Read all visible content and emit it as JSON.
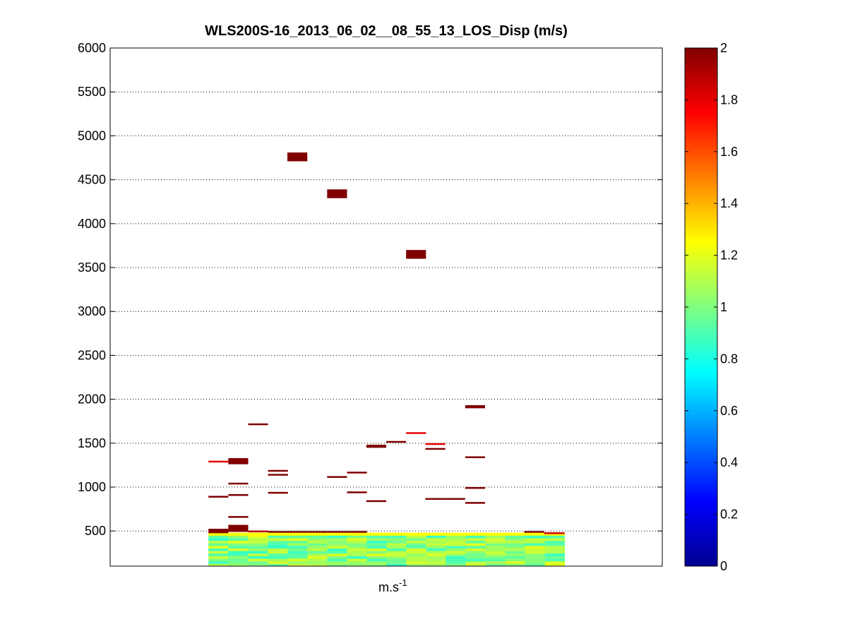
{
  "chart_data": {
    "type": "heatmap",
    "title": "WLS200S-16_2013_06_02__08_55_13_LOS_Disp (m/s)",
    "xlabel": {
      "base": "m.s",
      "superscript": "-1"
    },
    "ylabel": "",
    "ylim": [
      100,
      6000
    ],
    "yticks": [
      500,
      1000,
      1500,
      2000,
      2500,
      3000,
      3500,
      4000,
      4500,
      5000,
      5500,
      6000
    ],
    "y_grid": "dotted",
    "x_range": [
      0,
      1
    ],
    "colormap": "jet",
    "colorbar": {
      "range": [
        0,
        2
      ],
      "ticks": [
        0,
        0.2,
        0.4,
        0.6,
        0.8,
        1,
        1.2,
        1.4,
        1.6,
        1.8,
        2
      ],
      "tick_labels": [
        "0",
        "0.2",
        "0.4",
        "0.6",
        "0.8",
        "1",
        "1.2",
        "1.4",
        "1.6",
        "1.8",
        "2"
      ]
    },
    "dense_layer": {
      "x_start": 0.178,
      "x_end": 0.823,
      "columns": 18,
      "y_bottom": 100,
      "y_top": 480,
      "rows": 13,
      "value_range": [
        0.85,
        1.2
      ],
      "top_row_value": 1.25
    },
    "cells": [
      {
        "x": 0.178,
        "width": 0.036,
        "y": 500,
        "height": 50,
        "value": 2.0
      },
      {
        "x": 0.214,
        "width": 0.036,
        "y": 530,
        "height": 80,
        "value": 2.0
      },
      {
        "x": 0.25,
        "width": 0.036,
        "y": 495,
        "height": 20,
        "value": 1.9
      },
      {
        "x": 0.286,
        "width": 0.036,
        "y": 490,
        "height": 20,
        "value": 2.0
      },
      {
        "x": 0.321,
        "width": 0.036,
        "y": 490,
        "height": 20,
        "value": 2.0
      },
      {
        "x": 0.357,
        "width": 0.036,
        "y": 490,
        "height": 20,
        "value": 2.0
      },
      {
        "x": 0.393,
        "width": 0.036,
        "y": 490,
        "height": 20,
        "value": 2.0
      },
      {
        "x": 0.429,
        "width": 0.036,
        "y": 490,
        "height": 20,
        "value": 2.0
      },
      {
        "x": 0.75,
        "width": 0.036,
        "y": 490,
        "height": 20,
        "value": 2.0
      },
      {
        "x": 0.786,
        "width": 0.037,
        "y": 475,
        "height": 20,
        "value": 1.85
      },
      {
        "x": 0.178,
        "width": 0.036,
        "y": 890,
        "height": 20,
        "value": 2.0
      },
      {
        "x": 0.178,
        "width": 0.036,
        "y": 1290,
        "height": 20,
        "value": 1.8
      },
      {
        "x": 0.214,
        "width": 0.036,
        "y": 660,
        "height": 20,
        "value": 2.0
      },
      {
        "x": 0.214,
        "width": 0.036,
        "y": 910,
        "height": 20,
        "value": 2.0
      },
      {
        "x": 0.214,
        "width": 0.036,
        "y": 1040,
        "height": 20,
        "value": 2.0
      },
      {
        "x": 0.214,
        "width": 0.036,
        "y": 1295,
        "height": 70,
        "value": 2.0
      },
      {
        "x": 0.25,
        "width": 0.036,
        "y": 1715,
        "height": 20,
        "value": 2.0
      },
      {
        "x": 0.286,
        "width": 0.036,
        "y": 935,
        "height": 20,
        "value": 2.0
      },
      {
        "x": 0.286,
        "width": 0.036,
        "y": 1140,
        "height": 20,
        "value": 2.0
      },
      {
        "x": 0.286,
        "width": 0.036,
        "y": 1185,
        "height": 20,
        "value": 2.0
      },
      {
        "x": 0.321,
        "width": 0.036,
        "y": 4760,
        "height": 100,
        "value": 2.0
      },
      {
        "x": 0.393,
        "width": 0.036,
        "y": 4340,
        "height": 100,
        "value": 2.0
      },
      {
        "x": 0.393,
        "width": 0.036,
        "y": 1115,
        "height": 20,
        "value": 2.0
      },
      {
        "x": 0.429,
        "width": 0.036,
        "y": 940,
        "height": 20,
        "value": 2.0
      },
      {
        "x": 0.429,
        "width": 0.036,
        "y": 1165,
        "height": 20,
        "value": 2.0
      },
      {
        "x": 0.464,
        "width": 0.036,
        "y": 840,
        "height": 20,
        "value": 2.0
      },
      {
        "x": 0.464,
        "width": 0.036,
        "y": 1465,
        "height": 35,
        "value": 2.0
      },
      {
        "x": 0.5,
        "width": 0.036,
        "y": 1515,
        "height": 20,
        "value": 2.0
      },
      {
        "x": 0.536,
        "width": 0.036,
        "y": 3650,
        "height": 100,
        "value": 2.0
      },
      {
        "x": 0.536,
        "width": 0.036,
        "y": 1615,
        "height": 20,
        "value": 1.8
      },
      {
        "x": 0.571,
        "width": 0.036,
        "y": 1435,
        "height": 20,
        "value": 2.0
      },
      {
        "x": 0.571,
        "width": 0.036,
        "y": 1490,
        "height": 20,
        "value": 1.8
      },
      {
        "x": 0.571,
        "width": 0.036,
        "y": 865,
        "height": 20,
        "value": 2.0
      },
      {
        "x": 0.607,
        "width": 0.036,
        "y": 865,
        "height": 20,
        "value": 2.0
      },
      {
        "x": 0.643,
        "width": 0.036,
        "y": 820,
        "height": 20,
        "value": 2.0
      },
      {
        "x": 0.643,
        "width": 0.036,
        "y": 990,
        "height": 20,
        "value": 2.0
      },
      {
        "x": 0.643,
        "width": 0.036,
        "y": 1340,
        "height": 20,
        "value": 2.0
      },
      {
        "x": 0.643,
        "width": 0.036,
        "y": 1915,
        "height": 35,
        "value": 2.0
      }
    ]
  }
}
